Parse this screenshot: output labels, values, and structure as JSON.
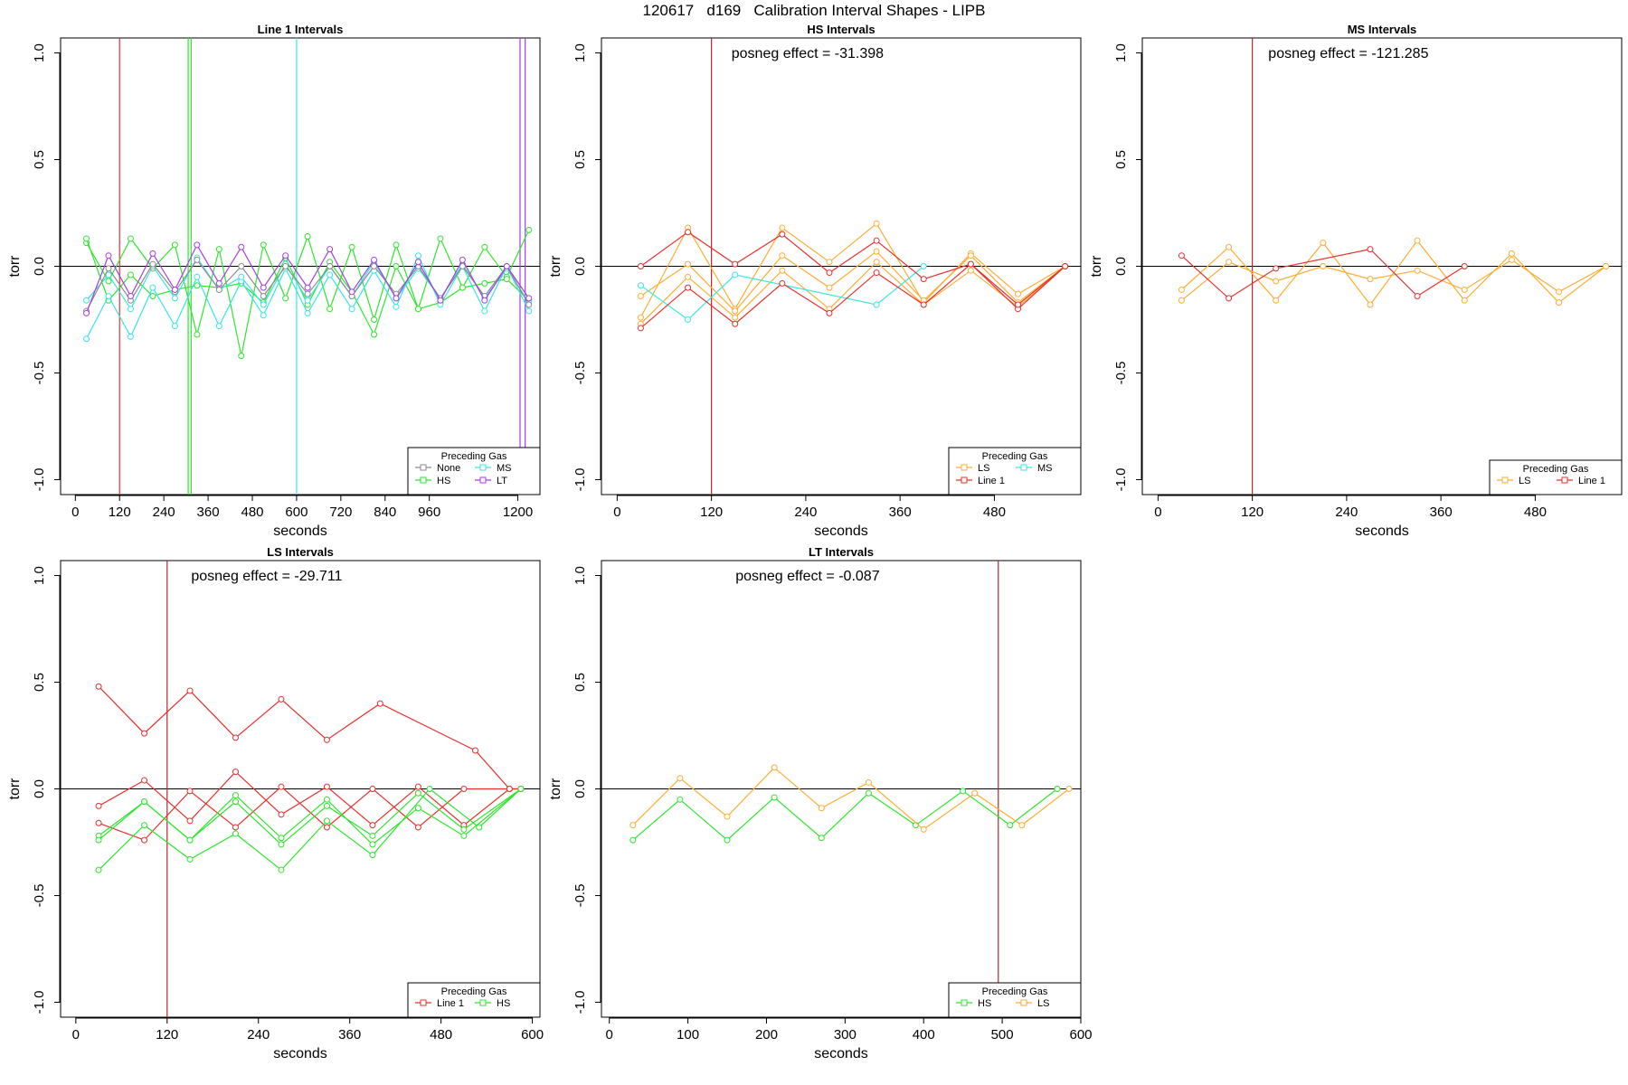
{
  "page_title": "120617   d169   Calibration Interval Shapes - LIPB",
  "colors": {
    "None": "#8c8c8c",
    "HS": "#2ee62e",
    "MS": "#38e6e6",
    "LT": "#a63ee6",
    "LS": "#ffad33",
    "Line 1": "#e8302e",
    "refline": "#b02a2a"
  },
  "chart_data": [
    {
      "type": "line",
      "title": "Line 1 Intervals",
      "xlabel": "seconds",
      "ylabel": "torr",
      "xlim": [
        -40,
        1260
      ],
      "ylim": [
        -1.07,
        1.07
      ],
      "xticks": [
        0,
        120,
        240,
        360,
        480,
        600,
        720,
        840,
        960,
        1200
      ],
      "yticks": [
        -1.0,
        -0.5,
        0.0,
        0.5,
        1.0
      ],
      "annotation": "",
      "legend": {
        "title": "Preceding Gas",
        "position": "bottom-right",
        "entries": [
          "None",
          "MS",
          "HS",
          "LT"
        ],
        "columns": 2
      },
      "vlines": [
        {
          "x": 120,
          "color": "Line 1"
        },
        {
          "x": 306,
          "color": "HS"
        },
        {
          "x": 314,
          "color": "HS"
        },
        {
          "x": 600,
          "color": "MS"
        },
        {
          "x": 1206,
          "color": "LT"
        },
        {
          "x": 1220,
          "color": "LT"
        }
      ],
      "series": [
        {
          "name": "HS",
          "x": [
            30,
            90,
            150,
            210,
            270,
            330,
            390,
            450,
            510,
            570,
            630,
            690,
            750,
            810,
            870,
            930,
            990,
            1050,
            1110,
            1170,
            1230
          ],
          "y": [
            0.11,
            -0.07,
            0.13,
            -0.01,
            0.1,
            -0.32,
            0.08,
            -0.42,
            0.1,
            -0.15,
            0.14,
            -0.2,
            0.09,
            -0.25,
            0.1,
            -0.2,
            0.13,
            -0.1,
            0.09,
            -0.05,
            0.17
          ]
        },
        {
          "name": "HS",
          "x": [
            30,
            90,
            150,
            210,
            270,
            330,
            390,
            450,
            510,
            570,
            630,
            690,
            750,
            810,
            870,
            930,
            990,
            1050,
            1110,
            1170,
            1230
          ],
          "y": [
            0.13,
            -0.16,
            -0.04,
            -0.14,
            -0.11,
            -0.09,
            -0.1,
            -0.08,
            -0.17,
            0.04,
            -0.18,
            0.02,
            -0.12,
            -0.32,
            0.0,
            -0.2,
            -0.17,
            -0.1,
            -0.08,
            -0.06,
            -0.16
          ]
        },
        {
          "name": "MS",
          "x": [
            30,
            90,
            150,
            210,
            270,
            330,
            390,
            450,
            510,
            570,
            630,
            690,
            750,
            810,
            870,
            930,
            990,
            1050,
            1110,
            1170,
            1230
          ],
          "y": [
            -0.34,
            -0.14,
            -0.33,
            -0.1,
            -0.28,
            -0.05,
            -0.28,
            -0.07,
            -0.23,
            -0.01,
            -0.22,
            -0.04,
            -0.2,
            -0.02,
            -0.19,
            0.05,
            -0.18,
            0.0,
            -0.21,
            0.0,
            -0.21
          ]
        },
        {
          "name": "MS",
          "x": [
            30,
            90,
            150,
            210,
            270,
            330,
            390,
            450,
            510,
            570,
            630,
            690,
            750,
            810,
            870,
            930,
            990,
            1050,
            1110,
            1170,
            1230
          ],
          "y": [
            -0.16,
            -0.04,
            -0.2,
            0.0,
            -0.15,
            0.04,
            -0.11,
            -0.05,
            -0.18,
            0.01,
            -0.16,
            0.0,
            -0.14,
            0.02,
            -0.15,
            -0.01,
            -0.15,
            0.01,
            -0.15,
            -0.01,
            -0.17
          ]
        },
        {
          "name": "None",
          "x": [
            30,
            90,
            150,
            210,
            270,
            330,
            390,
            450,
            510,
            570,
            630,
            690,
            750,
            810,
            870,
            930,
            990,
            1050,
            1110,
            1170,
            1230
          ],
          "y": [
            -0.21,
            -0.01,
            -0.16,
            0.01,
            -0.12,
            0.03,
            -0.11,
            0.0,
            -0.14,
            0.0,
            -0.13,
            0.0,
            -0.14,
            0.0,
            -0.13,
            0.0,
            -0.15,
            0.0,
            -0.14,
            0.0,
            -0.18
          ]
        },
        {
          "name": "LT",
          "x": [
            30,
            90,
            150,
            210,
            270,
            330,
            390,
            450,
            510,
            570,
            630,
            690,
            750,
            810,
            870,
            930,
            990,
            1050,
            1110,
            1170,
            1230
          ],
          "y": [
            -0.22,
            0.05,
            -0.14,
            0.06,
            -0.11,
            0.1,
            -0.08,
            0.09,
            -0.1,
            0.05,
            -0.1,
            0.08,
            -0.12,
            0.03,
            -0.15,
            0.02,
            -0.16,
            0.03,
            -0.16,
            0.0,
            -0.15
          ]
        }
      ]
    },
    {
      "type": "line",
      "title": "HS Intervals",
      "xlabel": "seconds",
      "ylabel": "torr",
      "xlim": [
        -20,
        590
      ],
      "ylim": [
        -1.07,
        1.07
      ],
      "xticks": [
        0,
        120,
        240,
        360,
        480
      ],
      "yticks": [
        -1.0,
        -0.5,
        0.0,
        0.5,
        1.0
      ],
      "annotation": "posneg effect = -31.398",
      "legend": {
        "title": "Preceding Gas",
        "position": "bottom-right",
        "entries": [
          "LS",
          "MS",
          "Line 1"
        ],
        "columns": 2
      },
      "vlines": [
        {
          "x": 120,
          "color": "refline"
        }
      ],
      "series": [
        {
          "name": "LS",
          "x": [
            30,
            90,
            150,
            210,
            270,
            330,
            390,
            450,
            510,
            570
          ],
          "y": [
            -0.24,
            0.18,
            -0.2,
            0.18,
            0.02,
            0.2,
            -0.17,
            0.06,
            -0.13,
            0.0
          ]
        },
        {
          "name": "LS",
          "x": [
            30,
            90,
            150,
            210,
            270,
            330,
            390,
            450,
            510,
            570
          ],
          "y": [
            -0.14,
            0.01,
            -0.21,
            0.05,
            -0.1,
            0.07,
            -0.16,
            0.05,
            -0.17,
            0.0
          ]
        },
        {
          "name": "LS",
          "x": [
            30,
            90,
            150,
            210,
            270,
            330,
            390,
            450,
            510,
            570
          ],
          "y": [
            -0.27,
            -0.05,
            -0.24,
            -0.02,
            -0.2,
            0.02,
            -0.18,
            -0.02,
            -0.19,
            0.0
          ]
        },
        {
          "name": "MS",
          "x": [
            30,
            90,
            150,
            330,
            390
          ],
          "y": [
            -0.09,
            -0.25,
            -0.04,
            -0.18,
            0.0
          ]
        },
        {
          "name": "Line 1",
          "x": [
            30,
            90,
            150,
            210,
            270,
            330,
            390,
            450,
            510,
            570
          ],
          "y": [
            0.0,
            0.16,
            0.01,
            0.15,
            -0.03,
            0.12,
            -0.06,
            0.01,
            -0.2,
            0.0
          ]
        },
        {
          "name": "Line 1",
          "x": [
            30,
            90,
            150,
            210,
            270,
            330,
            390,
            450,
            510,
            570
          ],
          "y": [
            -0.29,
            -0.1,
            -0.27,
            -0.08,
            -0.22,
            -0.03,
            -0.18,
            0.01,
            -0.18,
            0.0
          ]
        }
      ]
    },
    {
      "type": "line",
      "title": "MS Intervals",
      "xlabel": "seconds",
      "ylabel": "torr",
      "xlim": [
        -20,
        590
      ],
      "ylim": [
        -1.07,
        1.07
      ],
      "xticks": [
        0,
        120,
        240,
        360,
        480
      ],
      "yticks": [
        -1.0,
        -0.5,
        0.0,
        0.5,
        1.0
      ],
      "annotation": "posneg effect = -121.285",
      "legend": {
        "title": "Preceding Gas",
        "position": "bottom-right",
        "entries": [
          "LS",
          "Line 1"
        ],
        "columns": 2
      },
      "vlines": [
        {
          "x": 120,
          "color": "refline"
        }
      ],
      "series": [
        {
          "name": "LS",
          "x": [
            30,
            90,
            150,
            210,
            270,
            330,
            390,
            450,
            510,
            570
          ],
          "y": [
            -0.11,
            0.09,
            -0.16,
            0.11,
            -0.18,
            0.12,
            -0.16,
            0.06,
            -0.17,
            0.0
          ]
        },
        {
          "name": "LS",
          "x": [
            30,
            90,
            150,
            210,
            270,
            330,
            390,
            450,
            510,
            570
          ],
          "y": [
            -0.16,
            0.02,
            -0.07,
            0.0,
            -0.06,
            -0.02,
            -0.11,
            0.03,
            -0.12,
            0.0
          ]
        },
        {
          "name": "Line 1",
          "x": [
            30,
            90,
            150,
            270,
            330,
            390
          ],
          "y": [
            0.05,
            -0.15,
            -0.01,
            0.08,
            -0.14,
            0.0
          ]
        }
      ]
    },
    {
      "type": "line",
      "title": "LS Intervals",
      "xlabel": "seconds",
      "ylabel": "torr",
      "xlim": [
        -20,
        610
      ],
      "ylim": [
        -1.07,
        1.07
      ],
      "xticks": [
        0,
        120,
        240,
        360,
        480,
        600
      ],
      "yticks": [
        -1.0,
        -0.5,
        0.0,
        0.5,
        1.0
      ],
      "annotation": "posneg effect = -29.711",
      "legend": {
        "title": "Preceding Gas",
        "position": "bottom-right",
        "entries": [
          "Line 1",
          "HS"
        ],
        "columns": 2
      },
      "vlines": [
        {
          "x": 120,
          "color": "refline"
        }
      ],
      "series": [
        {
          "name": "Line 1",
          "x": [
            30,
            90,
            150,
            210,
            270,
            330,
            400,
            525,
            570,
            585
          ],
          "y": [
            0.48,
            0.26,
            0.46,
            0.24,
            0.42,
            0.23,
            0.4,
            0.18,
            0.0,
            0.0
          ]
        },
        {
          "name": "Line 1",
          "x": [
            30,
            90,
            150,
            210,
            270,
            330,
            390,
            450,
            510,
            570,
            585
          ],
          "y": [
            -0.08,
            0.04,
            -0.15,
            0.08,
            -0.12,
            0.01,
            -0.17,
            0.01,
            -0.17,
            0.0,
            0.0
          ]
        },
        {
          "name": "Line 1",
          "x": [
            30,
            90,
            150,
            210,
            270,
            330,
            390,
            450,
            510,
            570
          ],
          "y": [
            -0.16,
            -0.24,
            -0.01,
            -0.18,
            0.01,
            -0.18,
            0.0,
            -0.18,
            0.0,
            0.0
          ]
        },
        {
          "name": "HS",
          "x": [
            30,
            90,
            150,
            210,
            270,
            330,
            390,
            450,
            510,
            585
          ],
          "y": [
            -0.22,
            -0.06,
            -0.24,
            -0.03,
            -0.23,
            -0.05,
            -0.26,
            -0.09,
            -0.22,
            0.0
          ]
        },
        {
          "name": "HS",
          "x": [
            30,
            90,
            150,
            210,
            270,
            330,
            390,
            450,
            510,
            585
          ],
          "y": [
            -0.24,
            -0.06,
            -0.24,
            -0.06,
            -0.26,
            -0.08,
            -0.22,
            -0.02,
            -0.19,
            0.0
          ]
        },
        {
          "name": "HS",
          "x": [
            30,
            90,
            150,
            210,
            270,
            330,
            390,
            465,
            530,
            585
          ],
          "y": [
            -0.38,
            -0.17,
            -0.33,
            -0.21,
            -0.38,
            -0.15,
            -0.31,
            0.0,
            -0.18,
            0.0
          ]
        }
      ]
    },
    {
      "type": "line",
      "title": "LT Intervals",
      "xlabel": "seconds",
      "ylabel": "torr",
      "xlim": [
        -10,
        600
      ],
      "ylim": [
        -1.07,
        1.07
      ],
      "xticks": [
        0,
        100,
        200,
        300,
        400,
        500,
        600
      ],
      "yticks": [
        -1.0,
        -0.5,
        0.0,
        0.5,
        1.0
      ],
      "annotation": "posneg effect = -0.087",
      "legend": {
        "title": "Preceding Gas",
        "position": "bottom-right",
        "entries": [
          "HS",
          "LS"
        ],
        "columns": 2
      },
      "vlines": [
        {
          "x": 495,
          "color": "refline"
        }
      ],
      "series": [
        {
          "name": "HS",
          "x": [
            30,
            90,
            150,
            210,
            270,
            330,
            390,
            450,
            510,
            570
          ],
          "y": [
            -0.24,
            -0.05,
            -0.24,
            -0.04,
            -0.23,
            -0.02,
            -0.17,
            -0.01,
            -0.17,
            0.0
          ]
        },
        {
          "name": "LS",
          "x": [
            30,
            90,
            150,
            210,
            270,
            330,
            400,
            465,
            525,
            585
          ],
          "y": [
            -0.17,
            0.05,
            -0.13,
            0.1,
            -0.09,
            0.03,
            -0.19,
            -0.02,
            -0.17,
            0.0
          ]
        }
      ]
    }
  ]
}
